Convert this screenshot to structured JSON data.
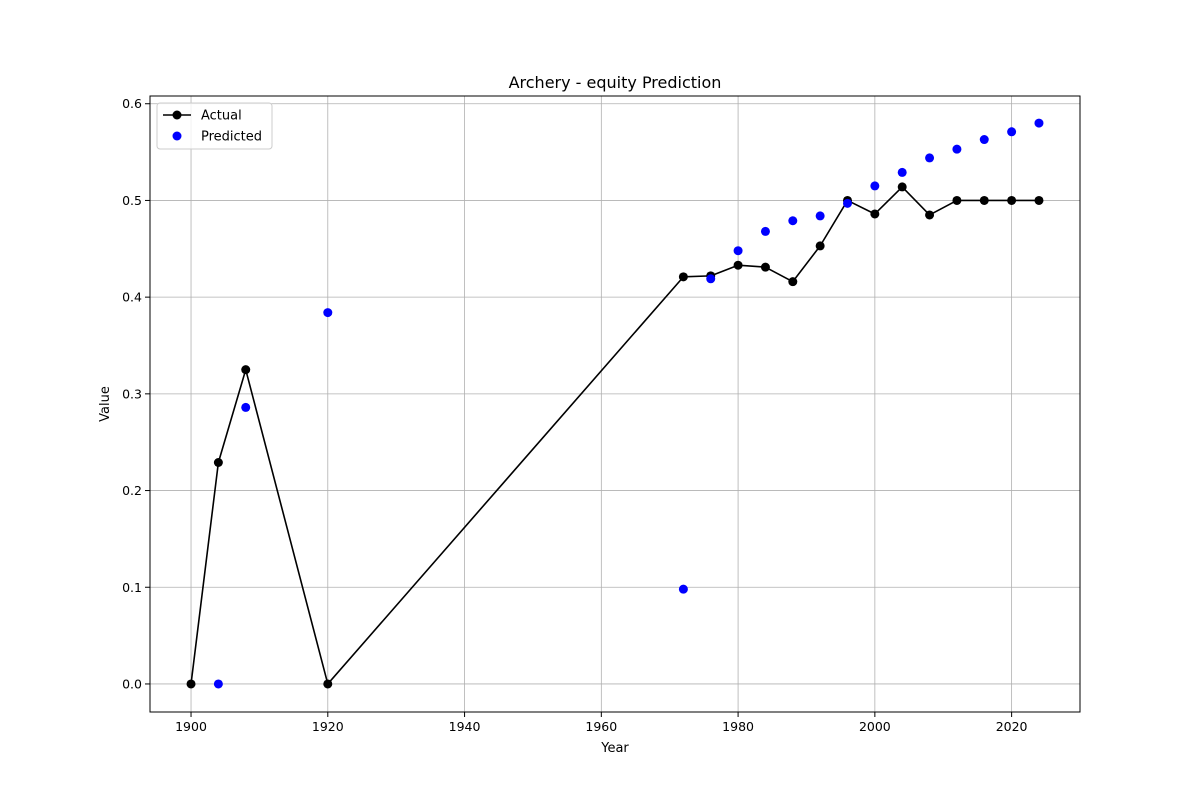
{
  "chart_data": {
    "type": "line",
    "title": "Archery - equity Prediction",
    "xlabel": "Year",
    "ylabel": "Value",
    "xlim": [
      1894,
      2030
    ],
    "ylim": [
      -0.029,
      0.608
    ],
    "x_ticks": [
      1900,
      1920,
      1940,
      1960,
      1980,
      2000,
      2020
    ],
    "y_ticks": [
      0.0,
      0.1,
      0.2,
      0.3,
      0.4,
      0.5,
      0.6
    ],
    "x_tick_labels": [
      "1900",
      "1920",
      "1940",
      "1960",
      "1980",
      "2000",
      "2020"
    ],
    "y_tick_labels": [
      "0.0",
      "0.1",
      "0.2",
      "0.3",
      "0.4",
      "0.5",
      "0.6"
    ],
    "grid": true,
    "legend_position": "top-left",
    "series": [
      {
        "name": "Actual",
        "style": "line-with-markers",
        "color": "#000000",
        "x": [
          1900,
          1904,
          1908,
          1920,
          1972,
          1976,
          1980,
          1984,
          1988,
          1992,
          1996,
          2000,
          2004,
          2008,
          2012,
          2016,
          2020,
          2024
        ],
        "y": [
          0.0,
          0.229,
          0.325,
          0.0,
          0.421,
          0.422,
          0.433,
          0.431,
          0.416,
          0.453,
          0.5,
          0.486,
          0.514,
          0.485,
          0.5,
          0.5,
          0.5,
          0.5
        ]
      },
      {
        "name": "Predicted",
        "style": "scatter",
        "color": "#0000ff",
        "x": [
          1904,
          1908,
          1920,
          1972,
          1976,
          1980,
          1984,
          1988,
          1992,
          1996,
          2000,
          2004,
          2008,
          2012,
          2016,
          2020,
          2024
        ],
        "y": [
          0.0,
          0.286,
          0.384,
          0.098,
          0.419,
          0.448,
          0.468,
          0.479,
          0.484,
          0.497,
          0.515,
          0.529,
          0.544,
          0.553,
          0.563,
          0.571,
          0.58
        ]
      }
    ]
  }
}
